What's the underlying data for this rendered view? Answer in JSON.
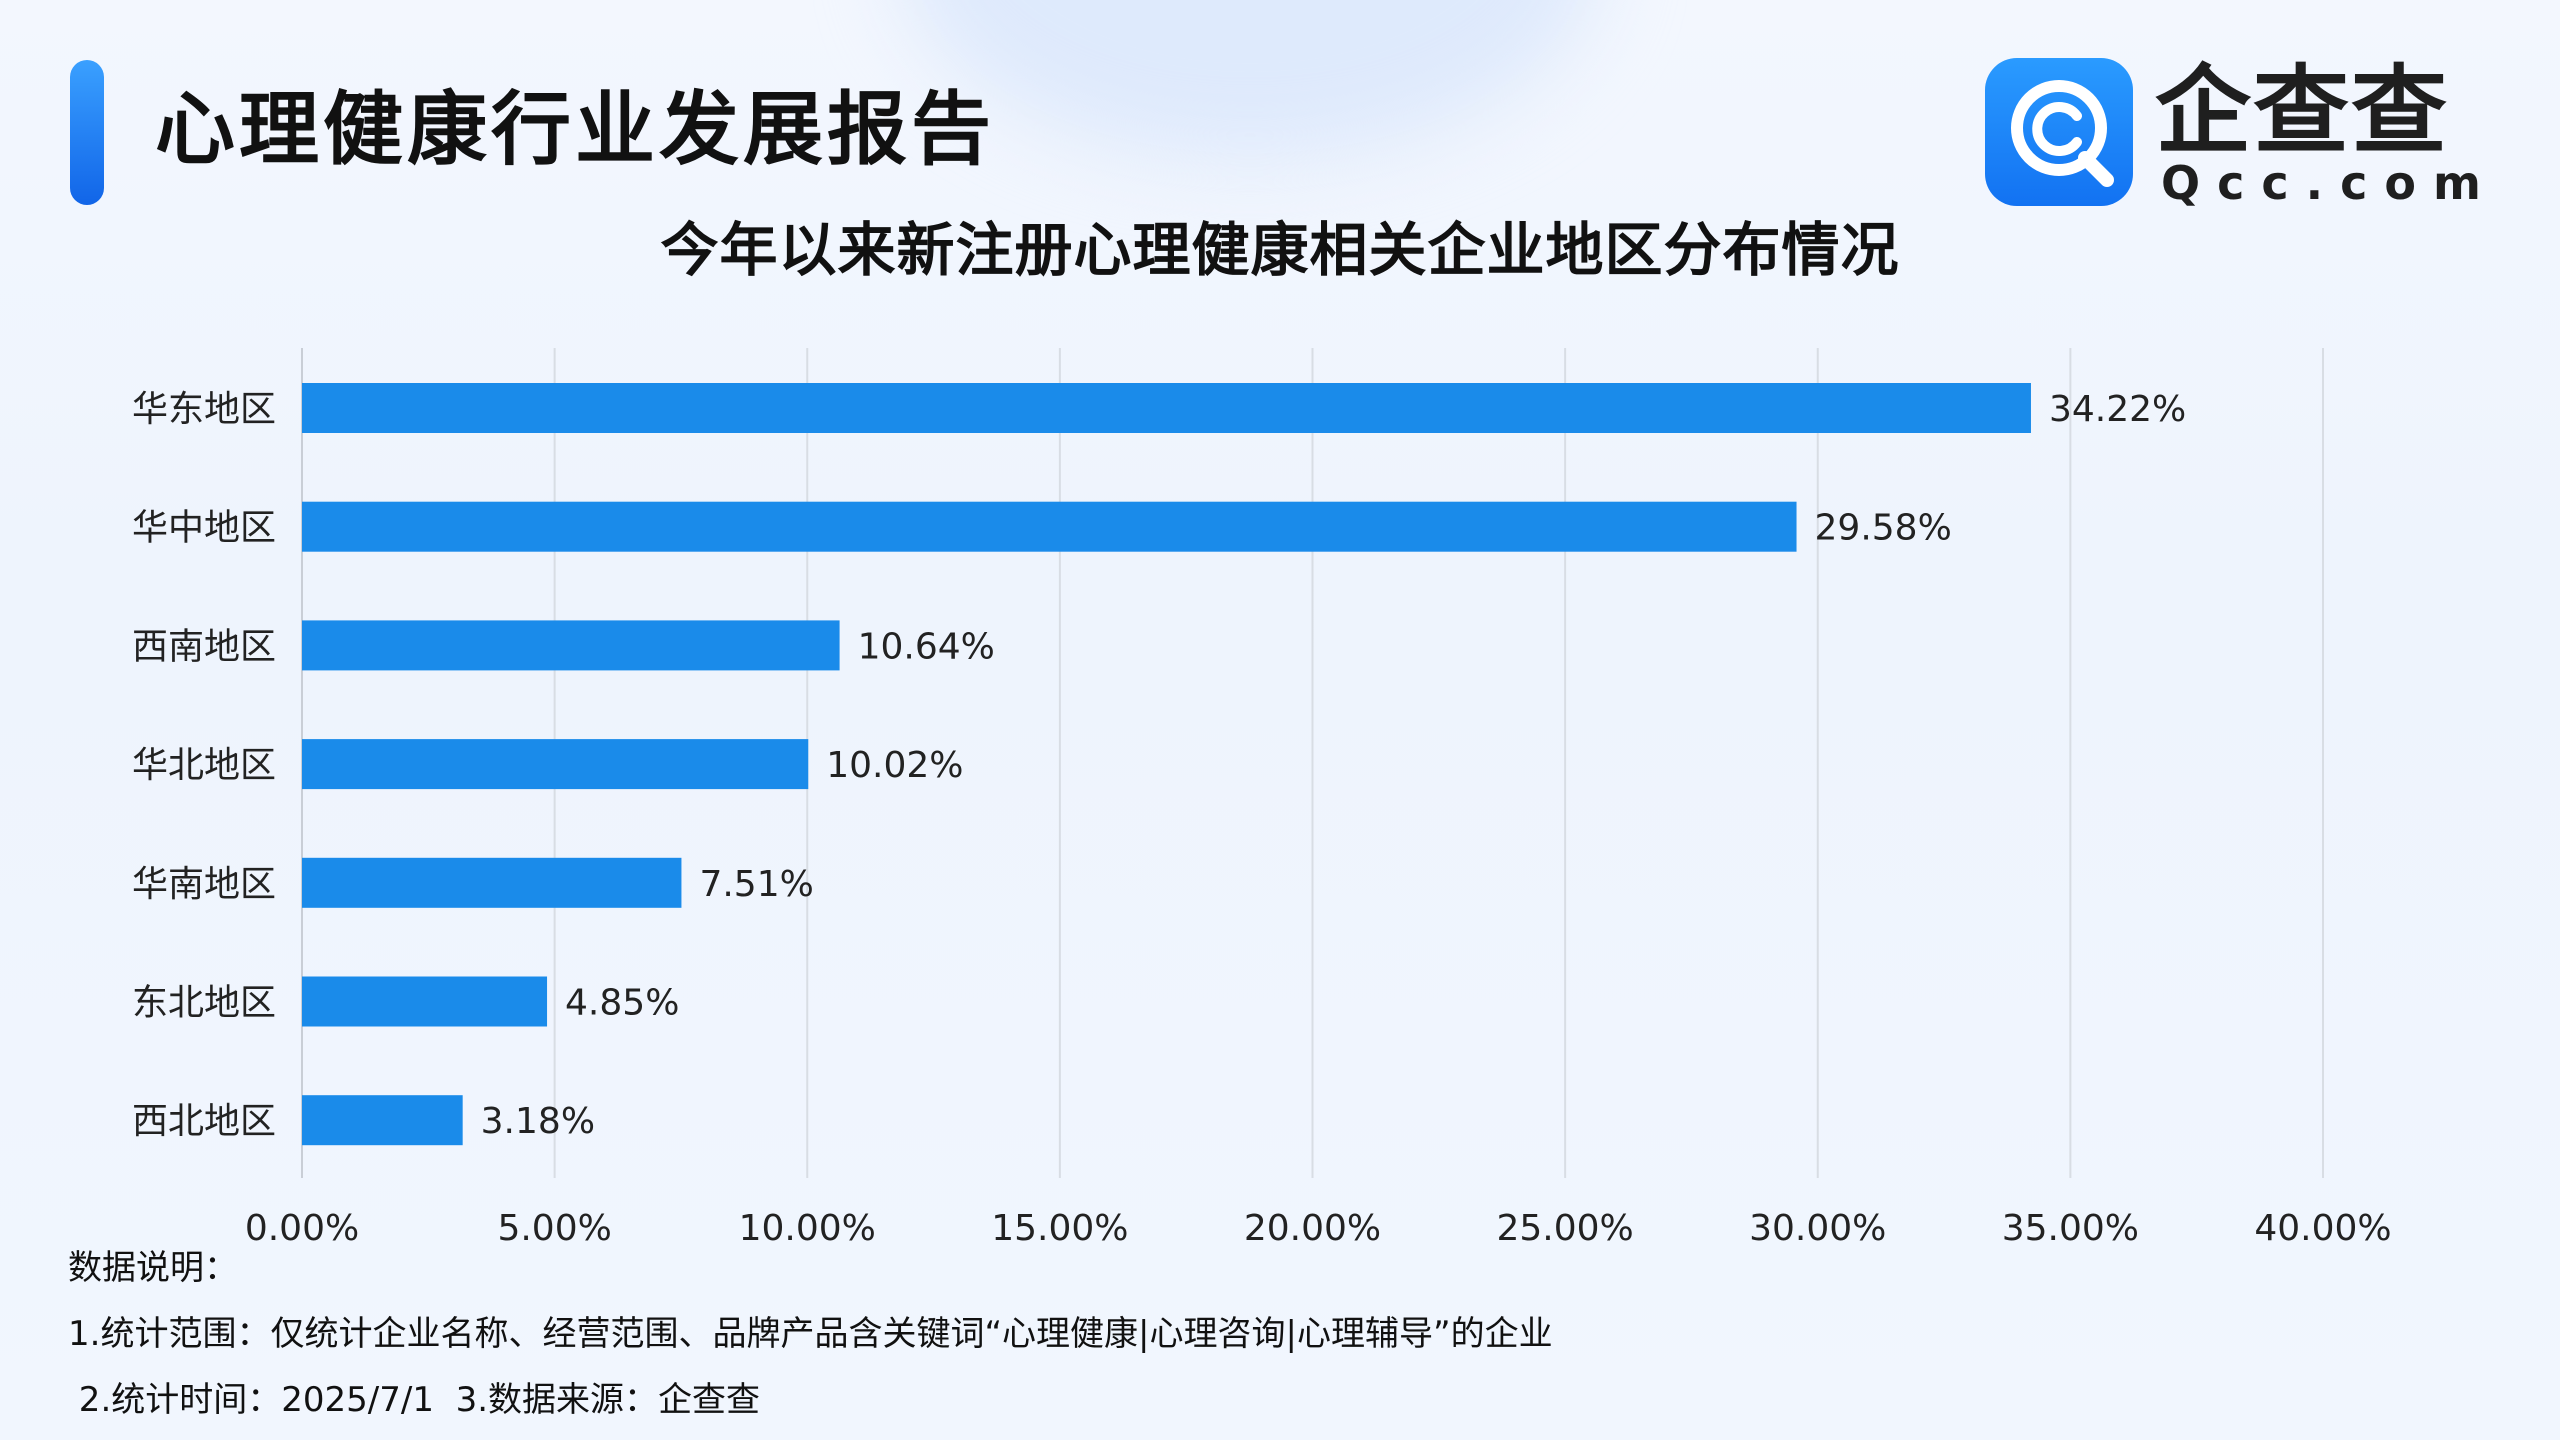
{
  "header": {
    "title": "心理健康行业发展报告"
  },
  "logo": {
    "name": "企查查",
    "sub": "Qcc.com",
    "icon": "qcc-logo-icon"
  },
  "chart_data": {
    "type": "bar",
    "orientation": "horizontal",
    "title": "今年以来新注册心理健康相关企业地区分布情况",
    "categories": [
      "华东地区",
      "华中地区",
      "西南地区",
      "华北地区",
      "华南地区",
      "东北地区",
      "西北地区"
    ],
    "values": [
      34.22,
      29.58,
      10.64,
      10.02,
      7.51,
      4.85,
      3.18
    ],
    "data_labels": [
      "34.22%",
      "29.58%",
      "10.64%",
      "10.02%",
      "7.51%",
      "4.85%",
      "3.18%"
    ],
    "x_ticks": [
      "0.00%",
      "5.00%",
      "10.00%",
      "15.00%",
      "20.00%",
      "25.00%",
      "30.00%",
      "35.00%",
      "40.00%"
    ],
    "xlim": [
      0,
      40
    ],
    "xlabel": "",
    "ylabel": "",
    "grid": "vertical",
    "legend": "none",
    "bar_color": "#1a8bea"
  },
  "notes": {
    "heading": "数据说明：",
    "line1": "1.统计范围：仅统计企业名称、经营范围、品牌产品含关键词“心理健康|心理咨询|心理辅导”的企业",
    "line2": " 2.统计时间：2025/7/1  3.数据来源：企查查"
  }
}
